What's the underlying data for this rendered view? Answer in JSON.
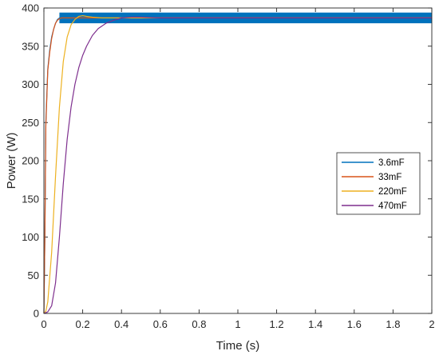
{
  "chart_data": {
    "type": "line",
    "xlabel": "Time (s)",
    "ylabel": "Power (W)",
    "xlim": [
      0,
      2
    ],
    "ylim": [
      0,
      400
    ],
    "xticks": [
      0,
      0.2,
      0.4,
      0.6,
      0.8,
      1,
      1.2,
      1.4,
      1.6,
      1.8,
      2
    ],
    "xtick_labels": [
      "0",
      "0.2",
      "0.4",
      "0.6",
      "0.8",
      "1",
      "1.2",
      "1.4",
      "1.6",
      "1.8",
      "2"
    ],
    "yticks": [
      0,
      50,
      100,
      150,
      200,
      250,
      300,
      350,
      400
    ],
    "ytick_labels": [
      "0",
      "50",
      "100",
      "150",
      "200",
      "250",
      "300",
      "350",
      "400"
    ],
    "grid": false,
    "box": true,
    "legend_position": "right",
    "series": [
      {
        "name": "3.6mF",
        "color": "#0072BD",
        "ripple_band": [
          380,
          394
        ],
        "x": [
          0,
          0.005,
          0.01,
          0.02,
          0.03,
          0.04,
          0.05,
          0.06,
          0.07,
          0.08,
          0.09,
          2
        ],
        "y": [
          0,
          100,
          250,
          320,
          345,
          362,
          372,
          380,
          385,
          387,
          387,
          387
        ]
      },
      {
        "name": "33mF",
        "color": "#D95319",
        "x": [
          0,
          0.005,
          0.01,
          0.02,
          0.03,
          0.04,
          0.05,
          0.06,
          0.07,
          0.08,
          0.09,
          2
        ],
        "y": [
          0,
          100,
          245,
          318,
          342,
          360,
          372,
          380,
          384,
          386,
          387,
          387
        ]
      },
      {
        "name": "220mF",
        "color": "#EDB120",
        "x": [
          0,
          0.01,
          0.02,
          0.04,
          0.06,
          0.08,
          0.1,
          0.12,
          0.14,
          0.16,
          0.18,
          0.2,
          0.22,
          0.25,
          0.3,
          2
        ],
        "y": [
          0,
          3,
          15,
          80,
          180,
          270,
          330,
          362,
          378,
          385,
          389,
          390,
          389,
          388,
          387,
          387
        ]
      },
      {
        "name": "470mF",
        "color": "#7E2F8E",
        "x": [
          0,
          0.02,
          0.04,
          0.06,
          0.08,
          0.1,
          0.12,
          0.14,
          0.16,
          0.18,
          0.2,
          0.22,
          0.25,
          0.28,
          0.32,
          0.36,
          0.4,
          0.45,
          0.5,
          0.6,
          2
        ],
        "y": [
          0,
          2,
          10,
          40,
          100,
          170,
          228,
          270,
          300,
          322,
          338,
          350,
          364,
          373,
          380,
          384,
          387,
          388,
          388,
          387,
          387
        ]
      }
    ]
  }
}
